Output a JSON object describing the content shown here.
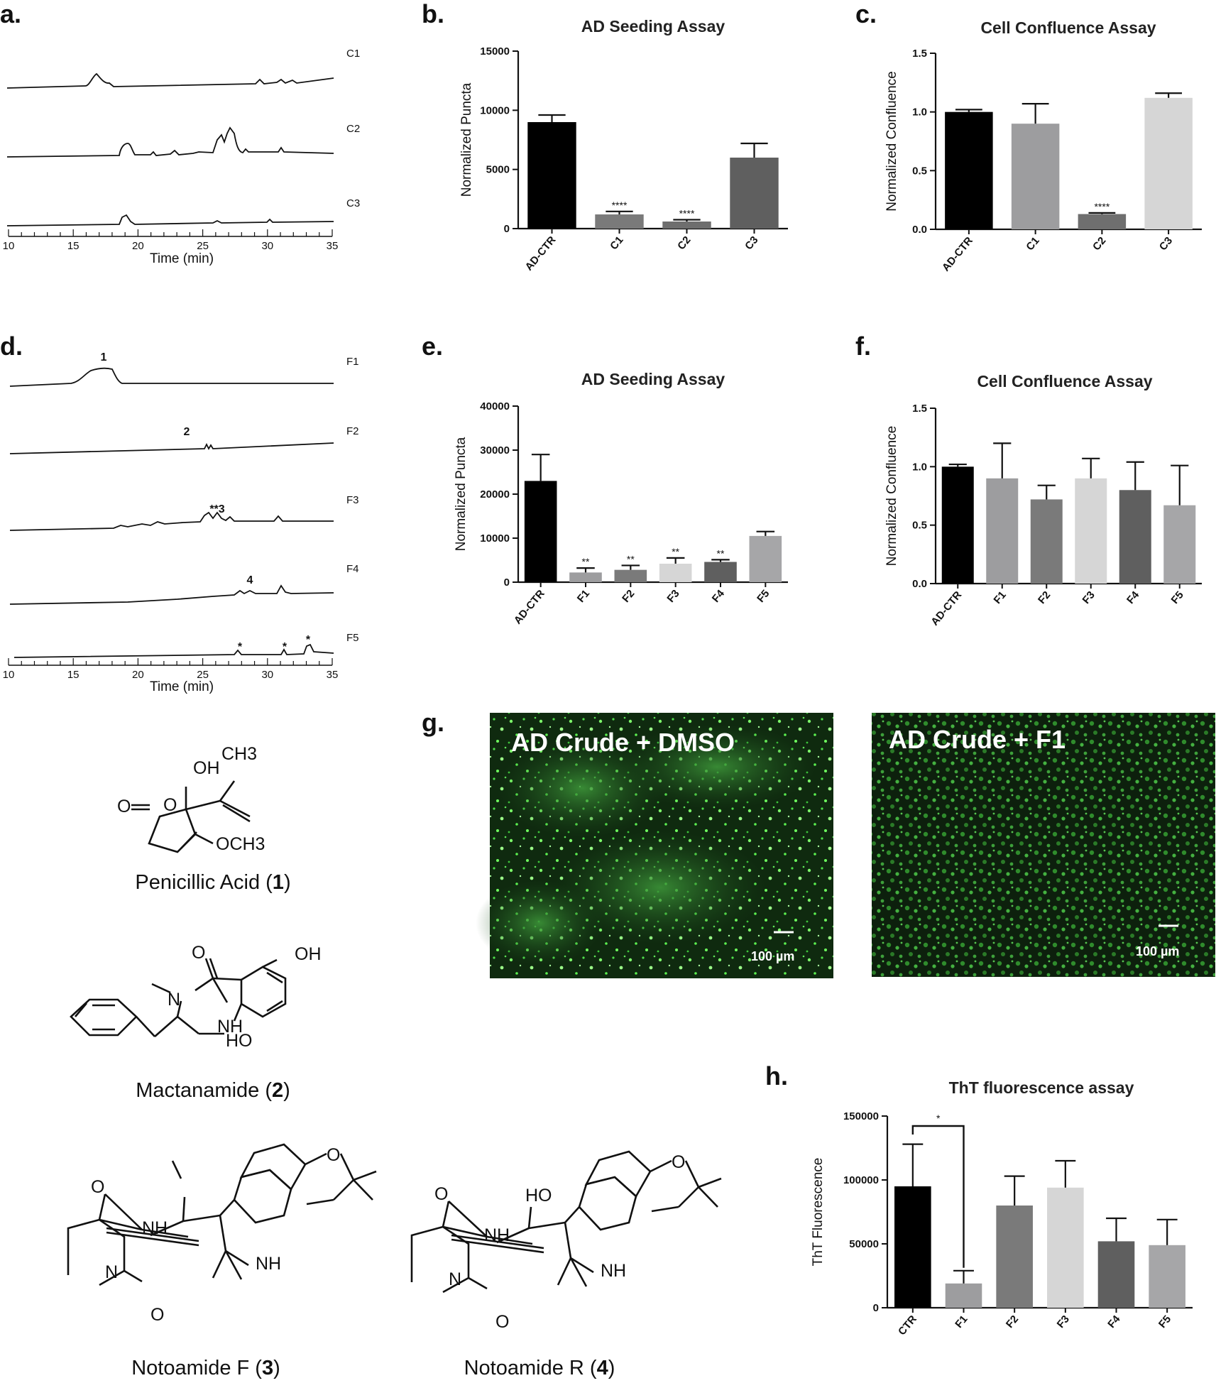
{
  "panels": {
    "a": {
      "label": "a.",
      "traces": [
        "C1",
        "C2",
        "C3"
      ],
      "xlabel": "Time (min)",
      "xticks": [
        10,
        15,
        20,
        25,
        30,
        35
      ]
    },
    "d": {
      "label": "d.",
      "traces": [
        "F1",
        "F2",
        "F3",
        "F4",
        "F5"
      ],
      "peak_labels": [
        "1",
        "2",
        "**3",
        "4",
        "*",
        "*",
        "*"
      ],
      "xlabel": "Time (min)",
      "xticks": [
        10,
        15,
        20,
        25,
        30,
        35
      ]
    },
    "b": {
      "label": "b."
    },
    "c": {
      "label": "c."
    },
    "e": {
      "label": "e."
    },
    "f": {
      "label": "f."
    },
    "g": {
      "label": "g.",
      "left_title": "AD Crude + DMSO",
      "right_title": "AD Crude + F1",
      "scalebar": "100 µm"
    },
    "h": {
      "label": "h."
    }
  },
  "compounds": [
    {
      "name": "Penicillic Acid",
      "number": "1"
    },
    {
      "name": "Mactanamide",
      "number": "2"
    },
    {
      "name": "Notoamide F",
      "number": "3"
    },
    {
      "name": "Notoamide R",
      "number": "4"
    }
  ],
  "structure_labels": {
    "c1": [
      "OH",
      "CH3",
      "O",
      "O",
      "OCH3"
    ],
    "c2": [
      "O",
      "OH",
      "N",
      "NH",
      "HO"
    ],
    "c3": [
      "O",
      "O",
      "NH",
      "NH",
      "N",
      "O"
    ],
    "c4": [
      "O",
      "O",
      "HO",
      "NH",
      "NH",
      "N",
      "O"
    ]
  },
  "chart_data": [
    {
      "id": "b",
      "type": "bar",
      "title": "AD Seeding Assay",
      "ylabel": "Normalized Puncta",
      "categories": [
        "AD-CTR",
        "C1",
        "C2",
        "C3"
      ],
      "values": [
        9000,
        1200,
        600,
        6000
      ],
      "errors": [
        600,
        250,
        150,
        1200
      ],
      "sig": [
        "",
        "****",
        "****",
        ""
      ],
      "colors": [
        "#000000",
        "#7a7a7a",
        "#6e6e6e",
        "#5f5f5f"
      ],
      "ylim": [
        0,
        15000
      ],
      "yticks": [
        0,
        5000,
        10000,
        15000
      ],
      "yticklabels": [
        "0",
        "5000",
        "10000",
        "15000"
      ]
    },
    {
      "id": "c",
      "type": "bar",
      "title": "Cell Confluence Assay",
      "ylabel": "Normalized Confluence",
      "categories": [
        "AD-CTR",
        "C1",
        "C2",
        "C3"
      ],
      "values": [
        1.0,
        0.9,
        0.13,
        1.12
      ],
      "errors": [
        0.02,
        0.17,
        0.01,
        0.04
      ],
      "sig": [
        "",
        "",
        "****",
        ""
      ],
      "colors": [
        "#000000",
        "#9d9d9f",
        "#6f6f6f",
        "#d6d6d6"
      ],
      "ylim": [
        0,
        1.5
      ],
      "yticks": [
        0,
        0.5,
        1.0,
        1.5
      ],
      "yticklabels": [
        "0.0",
        "0.5",
        "1.0",
        "1.5"
      ]
    },
    {
      "id": "e",
      "type": "bar",
      "title": "AD Seeding Assay",
      "ylabel": "Normalized Puncta",
      "categories": [
        "AD-CTR",
        "F1",
        "F2",
        "F3",
        "F4",
        "F5"
      ],
      "values": [
        23000,
        2200,
        2800,
        4200,
        4600,
        10500
      ],
      "errors": [
        6000,
        1000,
        1000,
        1300,
        500,
        1000
      ],
      "sig": [
        "",
        "**",
        "**",
        "**",
        "**",
        ""
      ],
      "colors": [
        "#000000",
        "#9d9d9f",
        "#7a7a7a",
        "#d6d6d6",
        "#5f5f5f",
        "#a6a6a8"
      ],
      "ylim": [
        0,
        40000
      ],
      "yticks": [
        0,
        10000,
        20000,
        30000,
        40000
      ],
      "yticklabels": [
        "0",
        "10000",
        "20000",
        "30000",
        "40000"
      ]
    },
    {
      "id": "f",
      "type": "bar",
      "title": "Cell Confluence Assay",
      "ylabel": "Normalized Confluence",
      "categories": [
        "AD-CTR",
        "F1",
        "F2",
        "F3",
        "F4",
        "F5"
      ],
      "values": [
        1.0,
        0.9,
        0.72,
        0.9,
        0.8,
        0.67
      ],
      "errors": [
        0.02,
        0.3,
        0.12,
        0.17,
        0.24,
        0.34
      ],
      "sig": [
        "",
        "",
        "",
        "",
        "",
        ""
      ],
      "colors": [
        "#000000",
        "#9d9d9f",
        "#7a7a7a",
        "#d6d6d6",
        "#5f5f5f",
        "#a6a6a8"
      ],
      "ylim": [
        0,
        1.5
      ],
      "yticks": [
        0,
        0.5,
        1.0,
        1.5
      ],
      "yticklabels": [
        "0.0",
        "0.5",
        "1.0",
        "1.5"
      ]
    },
    {
      "id": "h",
      "type": "bar",
      "title": "ThT fluorescence assay",
      "ylabel": "ThT Fluorescence",
      "categories": [
        "CTR",
        "F1",
        "F2",
        "F3",
        "F4",
        "F5"
      ],
      "values": [
        95000,
        19000,
        80000,
        94000,
        52000,
        49000
      ],
      "errors": [
        33000,
        10000,
        23000,
        21000,
        18000,
        20000
      ],
      "sig": [
        "",
        "",
        "",
        "",
        "",
        ""
      ],
      "bracket_label": "*",
      "colors": [
        "#000000",
        "#9d9d9f",
        "#7a7a7a",
        "#d6d6d6",
        "#5f5f5f",
        "#a6a6a8"
      ],
      "ylim": [
        0,
        150000
      ],
      "yticks": [
        0,
        50000,
        100000,
        150000
      ],
      "yticklabels": [
        "0",
        "50000",
        "100000",
        "150000"
      ]
    }
  ]
}
